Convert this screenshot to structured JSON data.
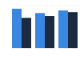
{
  "chart_data": {
    "type": "bar",
    "categories": [
      null,
      null,
      null
    ],
    "series": [
      {
        "color": "#3b86e0",
        "values": [
          91,
          81,
          87
        ]
      },
      {
        "color": "#1b2a41",
        "values": [
          70,
          74,
          83
        ]
      }
    ],
    "ylim": [
      0,
      100
    ],
    "yticks": [
      0,
      25,
      50,
      75,
      100
    ],
    "grid": true,
    "tick_labels": false
  }
}
